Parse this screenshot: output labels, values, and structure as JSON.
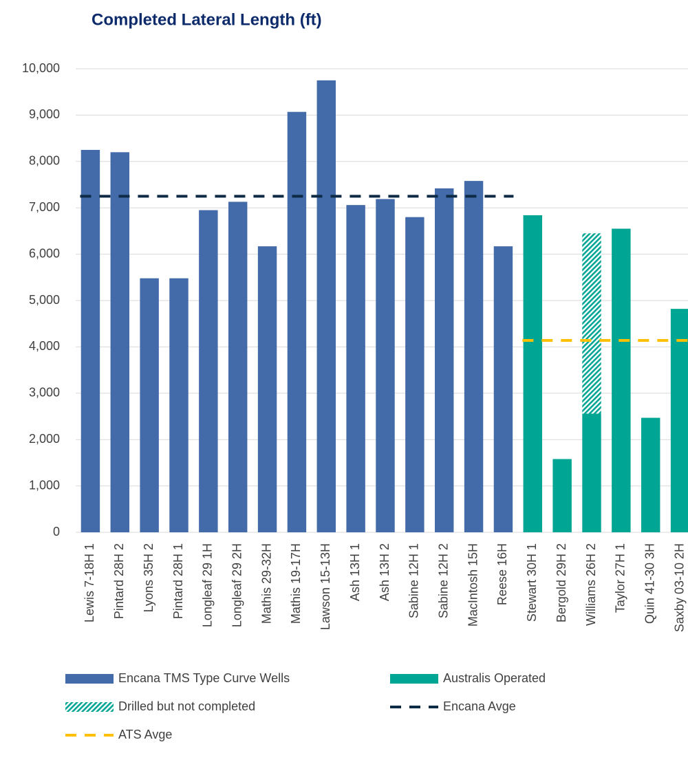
{
  "chart_data": {
    "type": "bar",
    "title": "Completed Lateral Length (ft)",
    "categories": [
      "Lewis 7-18H 1",
      "Pintard 28H 2",
      "Lyons 35H 2",
      "Pintard 28H 1",
      "Longleaf 29 1H",
      "Longleaf 29 2H",
      "Mathis 29-32H",
      "Mathis 19-17H",
      "Lawson 15-13H",
      "Ash 13H 1",
      "Ash 13H 2",
      "Sabine 12H 1",
      "Sabine 12H 2",
      "MacIntosh 15H",
      "Reese 16H",
      "Stewart 30H 1",
      "Bergold 29H 2",
      "Williams 26H 2",
      "Taylor 27H 1",
      "Quin 41-30 3H",
      "Saxby 03-10 2H"
    ],
    "series": [
      {
        "name": "Encana TMS Type Curve Wells",
        "type": "bar",
        "color": "#436aa9",
        "values": [
          8250,
          8200,
          5480,
          5480,
          6950,
          7130,
          6170,
          9070,
          9750,
          7060,
          7190,
          6800,
          7420,
          7580,
          6170,
          null,
          null,
          null,
          null,
          null,
          null
        ]
      },
      {
        "name": "Australis Operated",
        "type": "bar",
        "color": "#00a594",
        "values": [
          null,
          null,
          null,
          null,
          null,
          null,
          null,
          null,
          null,
          null,
          null,
          null,
          null,
          null,
          null,
          6840,
          1580,
          2560,
          6550,
          2470,
          4820
        ]
      },
      {
        "name": "Drilled but not completed",
        "type": "bar",
        "stacked": true,
        "hatch": true,
        "color": "#00a594",
        "values": [
          null,
          null,
          null,
          null,
          null,
          null,
          null,
          null,
          null,
          null,
          null,
          null,
          null,
          null,
          null,
          null,
          null,
          3890,
          null,
          null,
          null
        ]
      },
      {
        "name": "Encana Avge",
        "type": "line",
        "dashed": true,
        "color": "#0d2b45",
        "values": [
          7250,
          7250,
          7250,
          7250,
          7250,
          7250,
          7250,
          7250,
          7250,
          7250,
          7250,
          7250,
          7250,
          7250,
          7250,
          null,
          null,
          null,
          null,
          null,
          null
        ]
      },
      {
        "name": "ATS Avge",
        "type": "line",
        "dashed": true,
        "color": "#ffc000",
        "values": [
          null,
          null,
          null,
          null,
          null,
          null,
          null,
          null,
          null,
          null,
          null,
          null,
          null,
          null,
          null,
          4140,
          4140,
          4140,
          4140,
          4140,
          4140
        ]
      }
    ],
    "ylim": [
      0,
      10000
    ],
    "yticks": [
      0,
      {
        "value": 1000,
        "label": "1,000"
      },
      {
        "value": 2000,
        "label": "2,000"
      },
      {
        "value": 3000,
        "label": "3,000"
      },
      {
        "value": 4000,
        "label": "4,000"
      },
      {
        "value": 5000,
        "label": "5,000"
      },
      {
        "value": 6000,
        "label": "6,000"
      },
      {
        "value": 7000,
        "label": "7,000"
      },
      {
        "value": 8000,
        "label": "8,000"
      },
      {
        "value": 9000,
        "label": "9,000"
      },
      {
        "value": 10000,
        "label": "10,000"
      }
    ],
    "grid": true,
    "legend": "bottom"
  }
}
